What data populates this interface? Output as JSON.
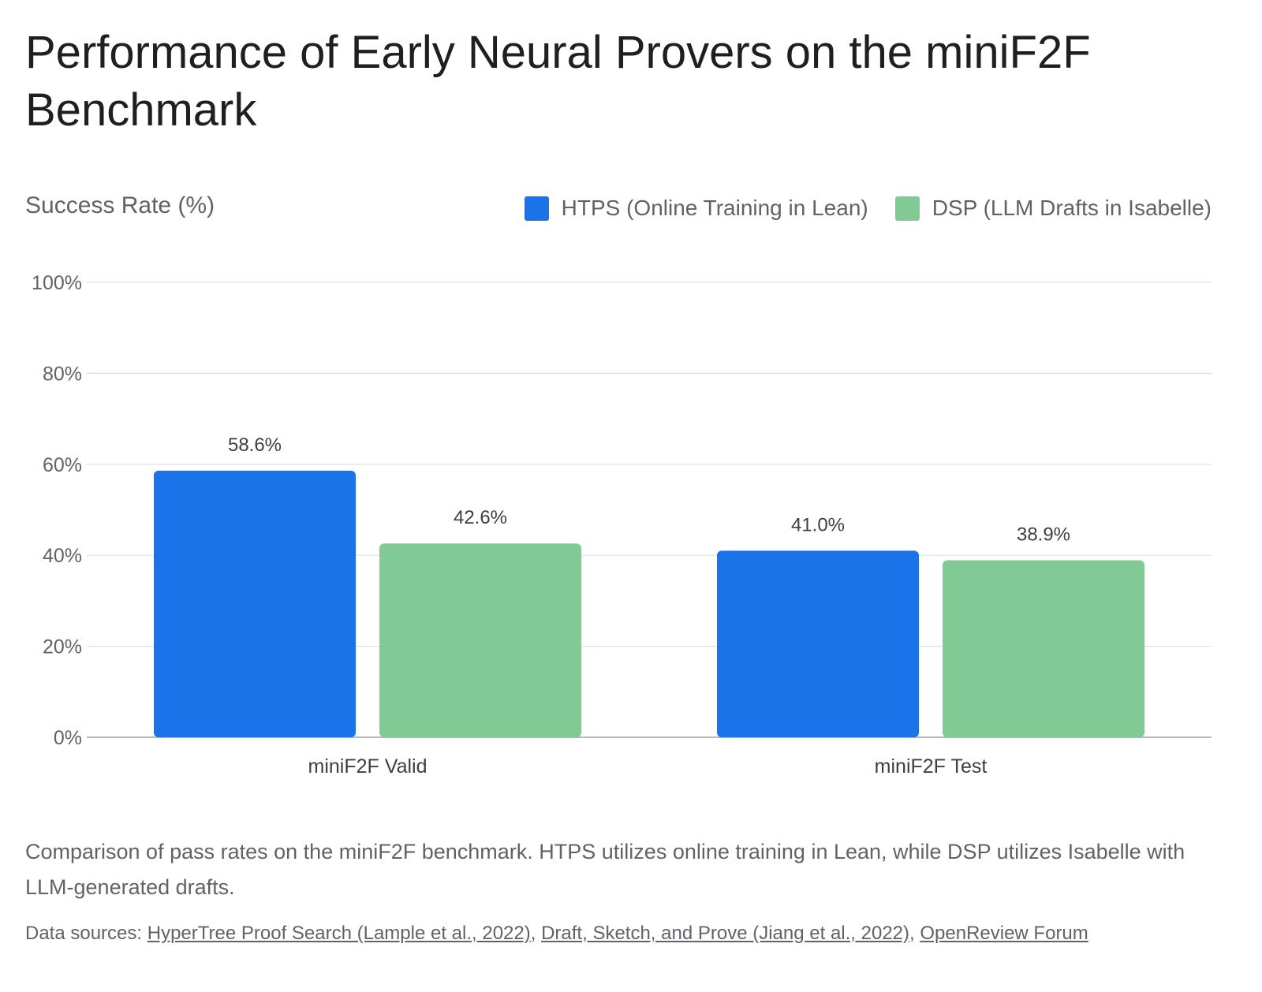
{
  "title": "Performance of Early Neural Provers on the miniF2F Benchmark",
  "caption": "Comparison of pass rates on the miniF2F benchmark. HTPS utilizes online training in Lean, while DSP utilizes Isabelle with LLM-generated drafts.",
  "sources": {
    "prefix": "Data sources: ",
    "links": [
      "HyperTree Proof Search (Lample et al., 2022)",
      "Draft, Sketch, and Prove (Jiang et al., 2022)",
      "OpenReview Forum"
    ],
    "separator": ", "
  },
  "colors": {
    "htps": "#1a73e8",
    "dsp": "#81c995",
    "grid": "#e0e0e0",
    "axis": "#9aa0a6"
  },
  "chart_data": {
    "type": "bar",
    "ylabel": "Success Rate (%)",
    "xlabel": "",
    "categories": [
      "miniF2F Valid",
      "miniF2F Test"
    ],
    "series": [
      {
        "name": "HTPS (Online Training in Lean)",
        "values": [
          58.6,
          41.0
        ],
        "labels": [
          "58.6%",
          "41.0%"
        ]
      },
      {
        "name": "DSP (LLM Drafts in Isabelle)",
        "values": [
          42.6,
          38.9
        ],
        "labels": [
          "42.6%",
          "38.9%"
        ]
      }
    ],
    "ylim": [
      0,
      100
    ],
    "yticks": [
      0,
      20,
      40,
      60,
      80,
      100
    ],
    "ytick_labels": [
      "0%",
      "20%",
      "40%",
      "60%",
      "80%",
      "100%"
    ],
    "grid": true,
    "legend": "top-right"
  }
}
